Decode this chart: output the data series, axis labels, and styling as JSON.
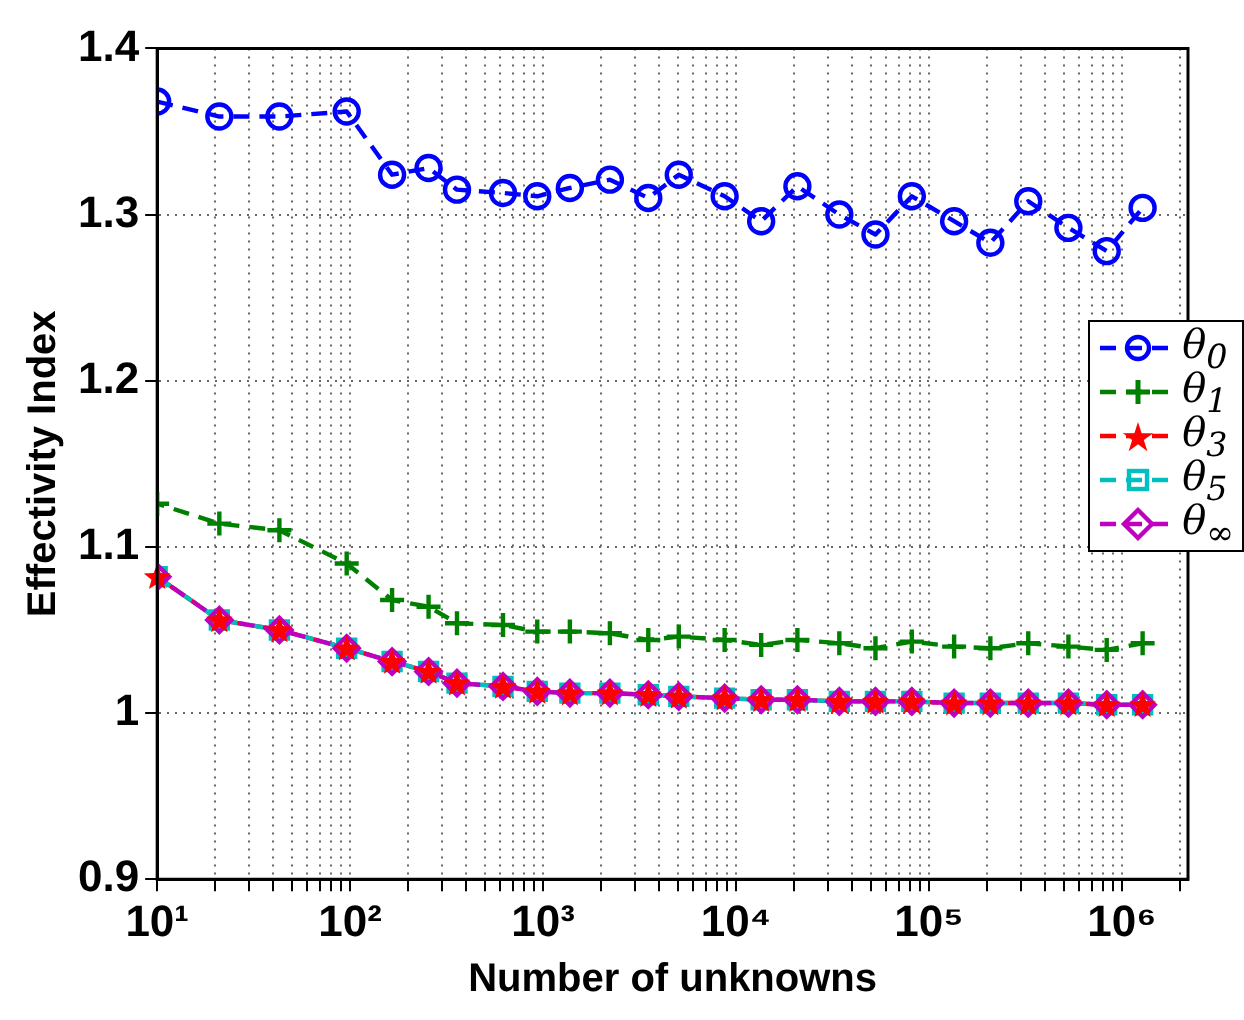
{
  "chart_data": {
    "type": "line",
    "xlabel": "Number of unknowns",
    "ylabel": "Effectivity Index",
    "x": [
      10,
      21,
      43,
      96,
      165,
      255,
      358,
      620,
      933,
      1377,
      2220,
      3510,
      5050,
      8730,
      13500,
      20800,
      34300,
      52800,
      81500,
      135000,
      208000,
      327000,
      528000,
      834000,
      1280000
    ],
    "series": [
      {
        "name": "θ$_{0}$",
        "color": "#0000ff",
        "marker": "circle",
        "values": [
          1.368,
          1.359,
          1.359,
          1.362,
          1.324,
          1.328,
          1.315,
          1.313,
          1.311,
          1.316,
          1.321,
          1.31,
          1.324,
          1.311,
          1.296,
          1.317,
          1.3,
          1.288,
          1.311,
          1.296,
          1.283,
          1.308,
          1.292,
          1.278,
          1.304
        ]
      },
      {
        "name": "θ$_{1}$",
        "color": "#008000",
        "marker": "cross",
        "values": [
          1.126,
          1.114,
          1.11,
          1.09,
          1.068,
          1.064,
          1.054,
          1.053,
          1.049,
          1.049,
          1.048,
          1.044,
          1.046,
          1.044,
          1.041,
          1.044,
          1.042,
          1.039,
          1.043,
          1.04,
          1.039,
          1.042,
          1.04,
          1.038,
          1.042
        ]
      },
      {
        "name": "θ$_{3}$",
        "color": "#ff0000",
        "marker": "star",
        "values": [
          1.082,
          1.056,
          1.05,
          1.039,
          1.031,
          1.025,
          1.018,
          1.016,
          1.013,
          1.012,
          1.012,
          1.011,
          1.01,
          1.009,
          1.008,
          1.008,
          1.007,
          1.007,
          1.007,
          1.006,
          1.006,
          1.006,
          1.006,
          1.005,
          1.005
        ]
      },
      {
        "name": "θ$_{5}$",
        "color": "#00bfbf",
        "marker": "square",
        "values": [
          1.082,
          1.056,
          1.05,
          1.039,
          1.031,
          1.025,
          1.018,
          1.016,
          1.013,
          1.012,
          1.012,
          1.011,
          1.01,
          1.009,
          1.008,
          1.008,
          1.007,
          1.007,
          1.007,
          1.006,
          1.006,
          1.006,
          1.006,
          1.005,
          1.005
        ]
      },
      {
        "name": "θ$_{∞}$",
        "color": "#bf00bf",
        "marker": "diamond",
        "values": [
          1.082,
          1.056,
          1.05,
          1.039,
          1.031,
          1.025,
          1.018,
          1.016,
          1.013,
          1.012,
          1.012,
          1.011,
          1.01,
          1.009,
          1.008,
          1.008,
          1.007,
          1.007,
          1.007,
          1.006,
          1.006,
          1.006,
          1.006,
          1.005,
          1.005
        ]
      }
    ],
    "log": "x",
    "xlim": [
      10,
      2200000
    ],
    "xticks": [
      {
        "value": 10,
        "label": "10¹"
      },
      {
        "value": 100,
        "label": "10²"
      },
      {
        "value": 1000,
        "label": "10³"
      },
      {
        "value": 10000,
        "label": "10⁴"
      },
      {
        "value": 100000,
        "label": "10⁵"
      },
      {
        "value": 1000000,
        "label": "10⁶"
      }
    ],
    "ylim": [
      0.9,
      1.4
    ],
    "yticks": [
      0.9,
      1,
      1.1,
      1.2,
      1.3,
      1.4
    ],
    "grid": true,
    "legend": "right",
    "line_style": "dashed"
  }
}
